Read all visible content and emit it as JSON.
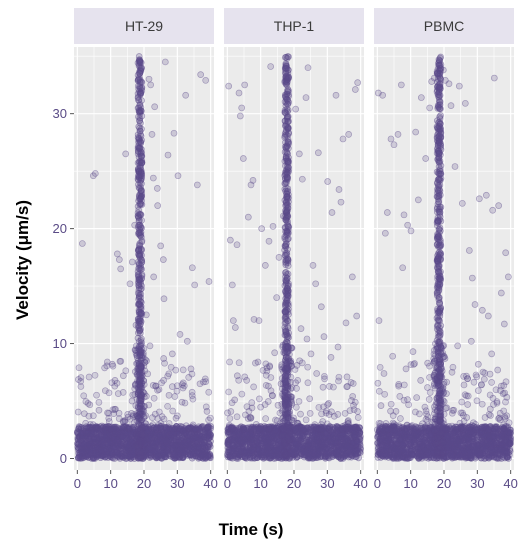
{
  "chart_data": {
    "type": "scatter",
    "title": "",
    "xlabel": "Time (s)",
    "ylabel": "Velocity (μm/s)",
    "xlim": [
      -1,
      41
    ],
    "ylim": [
      -1,
      35.8
    ],
    "x_ticks": [
      0,
      10,
      20,
      30,
      40
    ],
    "y_ticks": [
      0,
      10,
      20,
      30
    ],
    "grid": true,
    "legend": "none",
    "colors": {
      "point": "#5b4a8a",
      "panel_bg": "#ebebeb",
      "strip_bg": "#e6e3ee",
      "grid": "#ffffff"
    },
    "facets": [
      {
        "name": "HT-29",
        "burst_time": 18.8,
        "points": [
          [
            0.5,
            7.9
          ],
          [
            1.5,
            18.7
          ],
          [
            4.8,
            24.6
          ],
          [
            5.4,
            24.8
          ],
          [
            9.0,
            8.4
          ],
          [
            10.5,
            8.2
          ],
          [
            12.0,
            17.8
          ],
          [
            12.6,
            17.3
          ],
          [
            13.0,
            16.5
          ],
          [
            14.5,
            26.5
          ],
          [
            15.8,
            15.2
          ],
          [
            16.5,
            17.1
          ],
          [
            17.2,
            20.3
          ],
          [
            17.6,
            11.6
          ],
          [
            22.0,
            32.5
          ],
          [
            22.8,
            24.4
          ],
          [
            24.0,
            23.5
          ],
          [
            24.5,
            6.0
          ],
          [
            25.8,
            17.3
          ],
          [
            26.4,
            34.5
          ],
          [
            27.2,
            26.4
          ],
          [
            29.0,
            28.3
          ],
          [
            30.2,
            24.6
          ],
          [
            32.5,
            31.6
          ],
          [
            33.0,
            10.2
          ],
          [
            34.5,
            16.6
          ],
          [
            35.2,
            15.1
          ],
          [
            36.0,
            23.8
          ],
          [
            37.0,
            33.4
          ],
          [
            38.5,
            32.9
          ],
          [
            39.5,
            15.4
          ],
          [
            21.5,
            33.0
          ],
          [
            23.2,
            30.6
          ],
          [
            24.1,
            22.0
          ],
          [
            26.0,
            13.9
          ],
          [
            28.5,
            9.1
          ],
          [
            30.8,
            10.8
          ],
          [
            22.4,
            28.2
          ],
          [
            25.0,
            18.5
          ],
          [
            3.2,
            4.8
          ],
          [
            6.5,
            4.2
          ],
          [
            8.4,
            5.9
          ],
          [
            11.3,
            6.8
          ],
          [
            13.8,
            7.2
          ],
          [
            15.2,
            3.6
          ],
          [
            16.4,
            5.0
          ],
          [
            23.5,
            6.3
          ],
          [
            27.5,
            5.5
          ],
          [
            31.4,
            4.9
          ],
          [
            36.8,
            6.5
          ],
          [
            38.9,
            4.1
          ],
          [
            2.1,
            3.9
          ],
          [
            34.1,
            7.8
          ],
          [
            29.6,
            3.5
          ],
          [
            25.9,
            8.7
          ],
          [
            21.8,
            9.8
          ],
          [
            20.7,
            12.5
          ],
          [
            22.9,
            15.8
          ]
        ]
      },
      {
        "name": "THP-1",
        "burst_time": 17.8,
        "points": [
          [
            0.4,
            32.4
          ],
          [
            0.9,
            19.0
          ],
          [
            1.5,
            15.1
          ],
          [
            1.8,
            12.0
          ],
          [
            2.4,
            11.4
          ],
          [
            2.9,
            18.6
          ],
          [
            3.5,
            31.8
          ],
          [
            3.9,
            29.8
          ],
          [
            4.3,
            30.5
          ],
          [
            4.8,
            26.1
          ],
          [
            5.2,
            32.5
          ],
          [
            6.3,
            21.0
          ],
          [
            7.1,
            23.8
          ],
          [
            7.7,
            24.2
          ],
          [
            8.0,
            12.1
          ],
          [
            9.5,
            12.0
          ],
          [
            10.3,
            20.0
          ],
          [
            11.4,
            16.8
          ],
          [
            12.5,
            18.9
          ],
          [
            13.0,
            34.1
          ],
          [
            13.7,
            20.2
          ],
          [
            14.8,
            14.0
          ],
          [
            15.5,
            17.5
          ],
          [
            16.8,
            21.1
          ],
          [
            20.5,
            30.4
          ],
          [
            21.6,
            26.5
          ],
          [
            22.5,
            24.3
          ],
          [
            23.6,
            31.4
          ],
          [
            24.2,
            34.0
          ],
          [
            25.7,
            16.8
          ],
          [
            26.5,
            15.2
          ],
          [
            27.3,
            26.6
          ],
          [
            28.2,
            13.2
          ],
          [
            29.0,
            10.6
          ],
          [
            30.1,
            24.1
          ],
          [
            31.4,
            21.4
          ],
          [
            32.6,
            31.6
          ],
          [
            33.5,
            23.4
          ],
          [
            34.1,
            22.3
          ],
          [
            34.7,
            27.8
          ],
          [
            35.6,
            11.8
          ],
          [
            36.4,
            28.2
          ],
          [
            37.5,
            15.8
          ],
          [
            38.4,
            32.1
          ],
          [
            39.1,
            32.7
          ],
          [
            38.8,
            12.4
          ],
          [
            3.0,
            7.2
          ],
          [
            5.8,
            6.8
          ],
          [
            9.2,
            8.4
          ],
          [
            11.9,
            7.9
          ],
          [
            14.2,
            9.2
          ],
          [
            16.1,
            6.5
          ],
          [
            19.4,
            9.6
          ],
          [
            20.9,
            8.1
          ],
          [
            22.1,
            11.3
          ],
          [
            23.9,
            10.4
          ],
          [
            25.1,
            9.1
          ],
          [
            26.8,
            7.4
          ],
          [
            28.7,
            6.2
          ],
          [
            31.1,
            8.8
          ],
          [
            33.2,
            9.7
          ],
          [
            35.9,
            7.1
          ],
          [
            37.6,
            5.4
          ],
          [
            2.2,
            5.1
          ],
          [
            7.4,
            4.4
          ],
          [
            13.1,
            5.9
          ],
          [
            24.7,
            5.2
          ],
          [
            30.4,
            4.8
          ]
        ]
      },
      {
        "name": "PBMC",
        "burst_time": 18.5,
        "points": [
          [
            0.3,
            31.8
          ],
          [
            1.6,
            31.6
          ],
          [
            0.5,
            12.0
          ],
          [
            2.4,
            19.6
          ],
          [
            3.0,
            21.4
          ],
          [
            4.1,
            27.8
          ],
          [
            5.0,
            27.3
          ],
          [
            6.2,
            28.2
          ],
          [
            7.2,
            32.5
          ],
          [
            7.6,
            16.6
          ],
          [
            8.0,
            21.2
          ],
          [
            9.1,
            20.3
          ],
          [
            10.1,
            19.8
          ],
          [
            11.5,
            28.4
          ],
          [
            12.3,
            22.5
          ],
          [
            13.2,
            31.4
          ],
          [
            14.5,
            26.1
          ],
          [
            15.7,
            30.5
          ],
          [
            16.3,
            32.8
          ],
          [
            17.1,
            33.1
          ],
          [
            19.8,
            33.8
          ],
          [
            20.4,
            32.9
          ],
          [
            21.5,
            32.6
          ],
          [
            22.1,
            30.7
          ],
          [
            23.3,
            25.4
          ],
          [
            24.6,
            32.4
          ],
          [
            25.5,
            22.2
          ],
          [
            26.4,
            30.9
          ],
          [
            27.6,
            18.1
          ],
          [
            28.5,
            15.7
          ],
          [
            29.3,
            13.4
          ],
          [
            30.6,
            22.6
          ],
          [
            31.5,
            12.9
          ],
          [
            32.7,
            22.9
          ],
          [
            33.3,
            12.4
          ],
          [
            34.6,
            21.6
          ],
          [
            35.1,
            33.1
          ],
          [
            36.4,
            22.0
          ],
          [
            37.2,
            14.4
          ],
          [
            38.5,
            17.9
          ],
          [
            39.3,
            15.8
          ],
          [
            38.1,
            11.7
          ],
          [
            2.0,
            7.4
          ],
          [
            4.6,
            8.9
          ],
          [
            6.4,
            6.3
          ],
          [
            8.6,
            7.8
          ],
          [
            10.7,
            9.3
          ],
          [
            13.0,
            6.8
          ],
          [
            15.1,
            8.3
          ],
          [
            17.0,
            7.1
          ],
          [
            20.3,
            8.7
          ],
          [
            22.4,
            7.5
          ],
          [
            24.1,
            9.8
          ],
          [
            26.0,
            6.4
          ],
          [
            28.2,
            10.2
          ],
          [
            30.3,
            8.2
          ],
          [
            32.1,
            6.9
          ],
          [
            34.3,
            9.1
          ],
          [
            36.1,
            7.7
          ],
          [
            38.2,
            5.7
          ],
          [
            1.1,
            4.6
          ],
          [
            5.6,
            4.1
          ],
          [
            11.8,
            5.3
          ],
          [
            27.1,
            4.7
          ],
          [
            33.9,
            4.3
          ]
        ]
      }
    ]
  }
}
